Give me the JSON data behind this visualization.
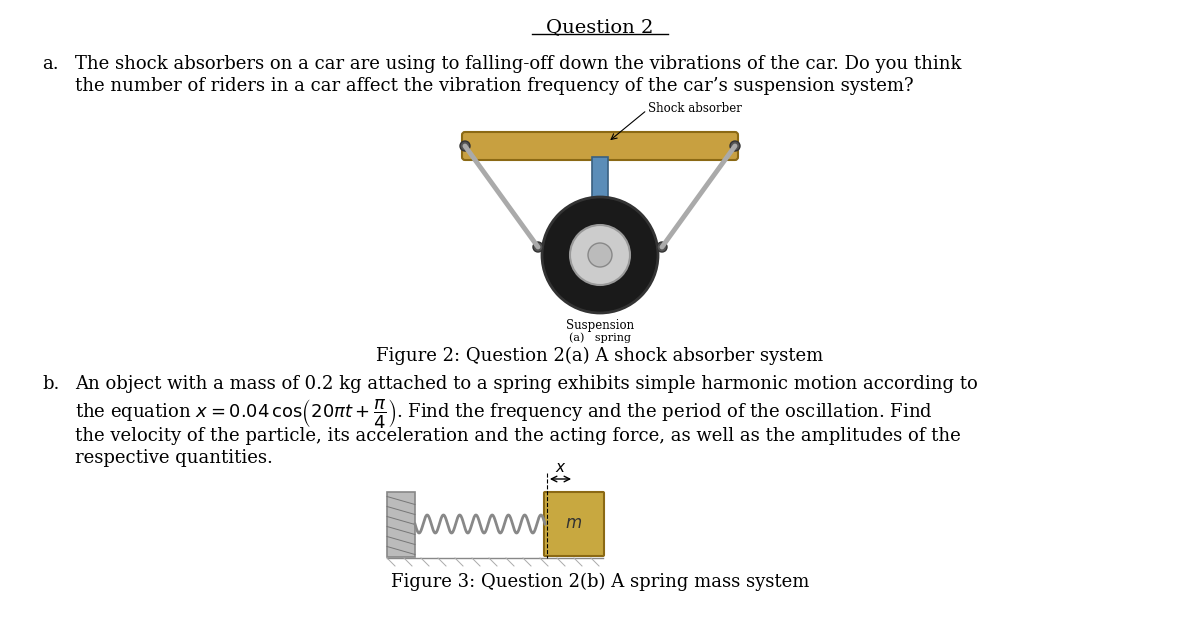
{
  "title": "Question 2",
  "bg_color": "#ffffff",
  "text_color": "#000000",
  "title_fontsize": 14,
  "body_fontsize": 13,
  "fig_caption_fontsize": 13,
  "part_a_label": "a.",
  "part_a_text_line1": "The shock absorbers on a car are using to falling-off down the vibrations of the car. Do you think",
  "part_a_text_line2": "the number of riders in a car affect the vibration frequency of the car’s suspension system?",
  "shock_absorber_label": "Shock absorber",
  "suspension_label": "Suspension",
  "fig2_caption_a": "(a)   spring",
  "fig2_caption": "Figure 2: Question 2(a) A shock absorber system",
  "part_b_label": "b.",
  "part_b_text_line1": "An object with a mass of 0.2 kg attached to a spring exhibits simple harmonic motion according to",
  "part_b_text_line3": "the velocity of the particle, its acceleration and the acting force, as well as the amplitudes of the",
  "part_b_text_line4": "respective quantities.",
  "fig3_caption": "Figure 3: Question 2(b) A spring mass system",
  "font_family": "serif",
  "beam_color": "#C8A040",
  "beam_edge_color": "#8B6914",
  "shock_color": "#5B8DB8",
  "shock_edge": "#3A6080",
  "wheel_color": "#1A1A1A",
  "rim_color": "#CCCCCC",
  "arm_color": "#AAAAAA",
  "mass_color": "#C8A840",
  "mass_edge": "#8B6914"
}
